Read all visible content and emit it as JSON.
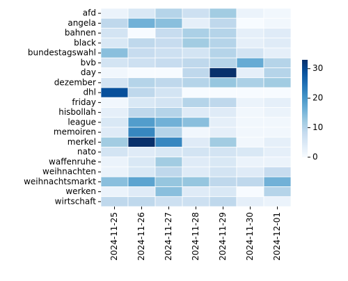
{
  "chart_data": {
    "type": "heatmap",
    "x": [
      "2024-11-25",
      "2024-11-26",
      "2024-11-27",
      "2024-11-28",
      "2024-11-29",
      "2024-11-30",
      "2024-12-01"
    ],
    "y": [
      "afd",
      "angela",
      "bahnen",
      "black",
      "bundestagswahl",
      "bvb",
      "day",
      "dezember",
      "dhl",
      "friday",
      "hisbollah",
      "league",
      "memoiren",
      "merkel",
      "nato",
      "waffenruhe",
      "weihnachten",
      "weihnachtsmarkt",
      "werken",
      "wirtschaft"
    ],
    "z": [
      [
        2,
        5,
        10,
        7,
        12,
        2,
        1
      ],
      [
        9,
        16,
        14,
        3,
        9,
        0,
        1
      ],
      [
        6,
        0,
        8,
        11,
        10,
        3,
        4
      ],
      [
        5,
        9,
        8,
        12,
        10,
        3,
        4
      ],
      [
        14,
        8,
        7,
        6,
        10,
        6,
        3
      ],
      [
        6,
        7,
        8,
        9,
        10,
        17,
        10
      ],
      [
        1,
        0,
        0,
        9,
        33,
        3,
        10
      ],
      [
        6,
        10,
        9,
        10,
        13,
        11,
        12
      ],
      [
        29,
        9,
        6,
        0,
        0,
        0,
        0
      ],
      [
        1,
        5,
        6,
        10,
        9,
        2,
        3
      ],
      [
        3,
        9,
        10,
        4,
        4,
        1,
        2
      ],
      [
        5,
        19,
        16,
        14,
        3,
        1,
        1
      ],
      [
        4,
        22,
        10,
        1,
        3,
        1,
        1
      ],
      [
        12,
        33,
        22,
        4,
        12,
        1,
        3
      ],
      [
        6,
        4,
        5,
        6,
        6,
        5,
        3
      ],
      [
        2,
        5,
        12,
        4,
        5,
        2,
        2
      ],
      [
        2,
        5,
        9,
        4,
        6,
        4,
        8
      ],
      [
        14,
        18,
        13,
        13,
        9,
        9,
        16
      ],
      [
        2,
        4,
        14,
        4,
        5,
        0,
        10
      ],
      [
        9,
        9,
        7,
        7,
        9,
        3,
        2
      ]
    ],
    "zlim": [
      0,
      33
    ],
    "zticks": [
      0,
      10,
      20,
      30
    ],
    "colormap": "Blues"
  }
}
